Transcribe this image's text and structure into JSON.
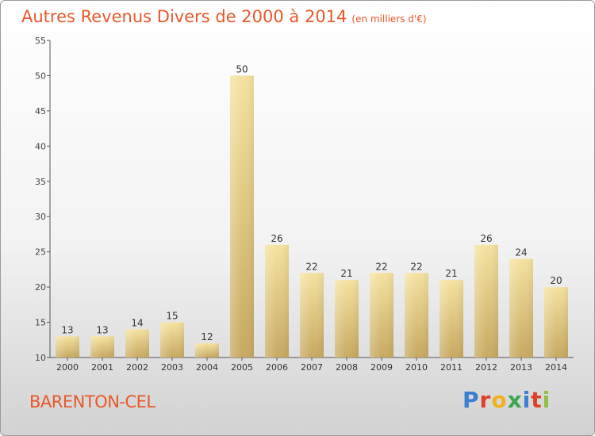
{
  "title": "Autres Revenus Divers de 2000 à 2014",
  "title_unit": "(en milliers d'€)",
  "location": "BARENTON-CEL",
  "logo": {
    "letters": [
      {
        "ch": "P",
        "color": "#3a7fd1"
      },
      {
        "ch": "r",
        "color": "#e0402a"
      },
      {
        "ch": "o",
        "color": "#f2b01e"
      },
      {
        "ch": "x",
        "color": "#3aa64a"
      },
      {
        "ch": "i",
        "color": "#3a7fd1"
      },
      {
        "ch": "t",
        "color": "#e0402a"
      },
      {
        "ch": "i",
        "color": "#8fbf3f"
      }
    ]
  },
  "chart_data": {
    "type": "bar",
    "categories": [
      "2000",
      "2001",
      "2002",
      "2003",
      "2004",
      "2005",
      "2006",
      "2007",
      "2008",
      "2009",
      "2010",
      "2011",
      "2012",
      "2013",
      "2014"
    ],
    "values": [
      13,
      13,
      14,
      15,
      12,
      50,
      26,
      22,
      21,
      22,
      22,
      21,
      26,
      24,
      20
    ],
    "ylim": [
      10,
      55
    ],
    "yticks": [
      10,
      15,
      20,
      25,
      30,
      35,
      40,
      45,
      50,
      55
    ],
    "grid": false,
    "bar_color": "#e2c77e",
    "title": "Autres Revenus Divers de 2000 à 2014",
    "xlabel": "",
    "ylabel": ""
  }
}
